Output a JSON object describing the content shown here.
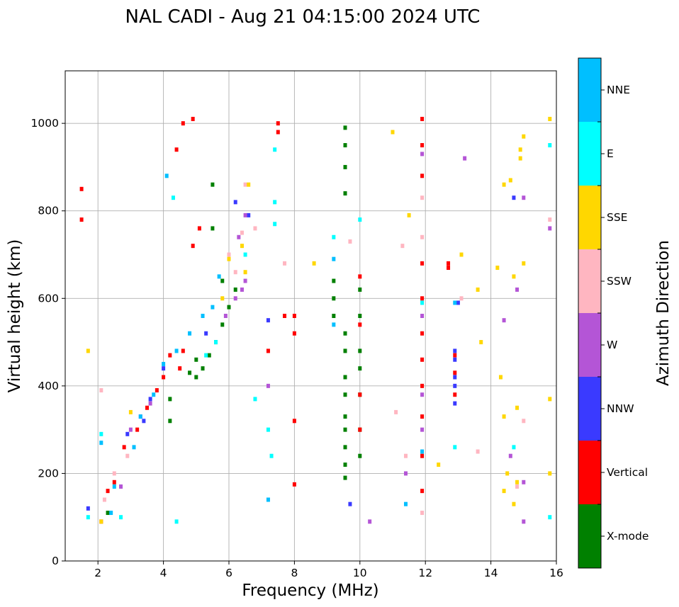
{
  "chart_data": {
    "type": "scatter",
    "title": "NAL CADI - Aug 21 04:15:00 2024 UTC",
    "xlabel": "Frequency (MHz)",
    "ylabel": "Virtual height (km)",
    "xlim": [
      1,
      16
    ],
    "ylim": [
      0,
      1120
    ],
    "xticks": [
      2,
      4,
      6,
      8,
      10,
      12,
      14,
      16
    ],
    "yticks": [
      0,
      200,
      400,
      600,
      800,
      1000
    ],
    "grid": true,
    "colorbar": {
      "label": "Azimuth Direction",
      "categories": [
        {
          "name": "X-mode",
          "color": "#008000"
        },
        {
          "name": "Vertical",
          "color": "#ff0000"
        },
        {
          "name": "NNW",
          "color": "#3a3aff"
        },
        {
          "name": "W",
          "color": "#b455d6"
        },
        {
          "name": "SSW",
          "color": "#ffb6c1"
        },
        {
          "name": "SSE",
          "color": "#ffd700"
        },
        {
          "name": "E",
          "color": "#00ffff"
        },
        {
          "name": "NNE",
          "color": "#00bfff"
        }
      ]
    },
    "series": [
      {
        "name": "X-mode",
        "points": [
          [
            5.0,
            420
          ],
          [
            5.2,
            440
          ],
          [
            5.4,
            470
          ],
          [
            5.6,
            500
          ],
          [
            5.8,
            540
          ],
          [
            6.0,
            580
          ],
          [
            6.2,
            620
          ],
          [
            5.5,
            760
          ],
          [
            5.5,
            860
          ],
          [
            5.8,
            640
          ],
          [
            4.2,
            320
          ],
          [
            4.2,
            370
          ],
          [
            9.55,
            520
          ],
          [
            9.55,
            480
          ],
          [
            9.55,
            420
          ],
          [
            9.55,
            380
          ],
          [
            9.55,
            330
          ],
          [
            9.55,
            300
          ],
          [
            9.55,
            260
          ],
          [
            9.55,
            220
          ],
          [
            9.55,
            190
          ],
          [
            9.55,
            990
          ],
          [
            9.55,
            950
          ],
          [
            9.55,
            900
          ],
          [
            9.55,
            840
          ],
          [
            9.2,
            640
          ],
          [
            9.2,
            600
          ],
          [
            9.2,
            560
          ],
          [
            10.0,
            620
          ],
          [
            10.0,
            560
          ],
          [
            10.0,
            480
          ],
          [
            10.0,
            440
          ],
          [
            10.0,
            380
          ],
          [
            10.0,
            300
          ],
          [
            10.0,
            240
          ],
          [
            2.3,
            110
          ],
          [
            5.0,
            460
          ],
          [
            4.8,
            430
          ]
        ]
      },
      {
        "name": "Vertical",
        "points": [
          [
            1.5,
            850
          ],
          [
            1.5,
            780
          ],
          [
            2.1,
            90
          ],
          [
            2.3,
            160
          ],
          [
            2.5,
            180
          ],
          [
            2.8,
            260
          ],
          [
            3.2,
            300
          ],
          [
            3.5,
            350
          ],
          [
            3.8,
            390
          ],
          [
            4.0,
            420
          ],
          [
            4.2,
            470
          ],
          [
            4.5,
            440
          ],
          [
            4.6,
            480
          ],
          [
            4.4,
            940
          ],
          [
            4.6,
            1000
          ],
          [
            4.9,
            1010
          ],
          [
            4.9,
            720
          ],
          [
            5.1,
            760
          ],
          [
            7.5,
            1000
          ],
          [
            7.5,
            980
          ],
          [
            7.7,
            560
          ],
          [
            8.0,
            560
          ],
          [
            8.0,
            520
          ],
          [
            8.0,
            320
          ],
          [
            8.0,
            175
          ],
          [
            7.2,
            480
          ],
          [
            11.9,
            680
          ],
          [
            11.9,
            600
          ],
          [
            11.9,
            520
          ],
          [
            11.9,
            460
          ],
          [
            11.9,
            400
          ],
          [
            11.9,
            330
          ],
          [
            11.9,
            240
          ],
          [
            11.9,
            160
          ],
          [
            11.9,
            880
          ],
          [
            11.9,
            950
          ],
          [
            11.9,
            1010
          ],
          [
            12.7,
            680
          ],
          [
            12.7,
            670
          ],
          [
            12.9,
            470
          ],
          [
            12.9,
            430
          ],
          [
            12.9,
            380
          ],
          [
            10.0,
            650
          ],
          [
            10.0,
            540
          ],
          [
            10.0,
            380
          ],
          [
            10.0,
            300
          ]
        ]
      },
      {
        "name": "NNW",
        "points": [
          [
            1.7,
            120
          ],
          [
            2.9,
            290
          ],
          [
            3.4,
            320
          ],
          [
            3.6,
            370
          ],
          [
            4.0,
            440
          ],
          [
            5.3,
            520
          ],
          [
            6.2,
            820
          ],
          [
            6.6,
            790
          ],
          [
            7.2,
            550
          ],
          [
            12.9,
            480
          ],
          [
            12.9,
            460
          ],
          [
            12.9,
            420
          ],
          [
            12.9,
            400
          ],
          [
            12.9,
            360
          ],
          [
            13.0,
            590
          ],
          [
            14.7,
            830
          ],
          [
            9.7,
            130
          ]
        ]
      },
      {
        "name": "W",
        "points": [
          [
            2.7,
            170
          ],
          [
            3.0,
            300
          ],
          [
            3.3,
            330
          ],
          [
            3.6,
            360
          ],
          [
            5.9,
            560
          ],
          [
            6.2,
            600
          ],
          [
            6.4,
            620
          ],
          [
            6.5,
            640
          ],
          [
            6.3,
            740
          ],
          [
            6.5,
            790
          ],
          [
            7.2,
            400
          ],
          [
            11.4,
            200
          ],
          [
            11.9,
            300
          ],
          [
            11.9,
            380
          ],
          [
            11.9,
            560
          ],
          [
            11.9,
            930
          ],
          [
            13.2,
            920
          ],
          [
            14.4,
            550
          ],
          [
            14.6,
            240
          ],
          [
            14.8,
            620
          ],
          [
            15.0,
            830
          ],
          [
            15.0,
            180
          ],
          [
            15.0,
            90
          ],
          [
            15.8,
            760
          ],
          [
            10.3,
            90
          ]
        ]
      },
      {
        "name": "SSW",
        "points": [
          [
            2.1,
            390
          ],
          [
            2.2,
            140
          ],
          [
            2.5,
            200
          ],
          [
            2.9,
            240
          ],
          [
            6.0,
            700
          ],
          [
            6.2,
            660
          ],
          [
            6.4,
            750
          ],
          [
            6.5,
            860
          ],
          [
            6.8,
            760
          ],
          [
            7.7,
            680
          ],
          [
            9.7,
            730
          ],
          [
            11.3,
            720
          ],
          [
            11.9,
            830
          ],
          [
            11.9,
            740
          ],
          [
            11.9,
            110
          ],
          [
            13.1,
            600
          ],
          [
            13.6,
            250
          ],
          [
            14.8,
            170
          ],
          [
            15.0,
            320
          ],
          [
            15.8,
            780
          ],
          [
            11.1,
            340
          ],
          [
            11.4,
            240
          ]
        ]
      },
      {
        "name": "SSE",
        "points": [
          [
            1.7,
            480
          ],
          [
            2.1,
            90
          ],
          [
            3.0,
            340
          ],
          [
            5.8,
            600
          ],
          [
            6.0,
            690
          ],
          [
            6.4,
            720
          ],
          [
            6.5,
            660
          ],
          [
            6.6,
            860
          ],
          [
            8.6,
            680
          ],
          [
            11.0,
            980
          ],
          [
            11.5,
            790
          ],
          [
            12.4,
            220
          ],
          [
            13.1,
            700
          ],
          [
            13.6,
            620
          ],
          [
            13.7,
            500
          ],
          [
            14.2,
            670
          ],
          [
            14.3,
            420
          ],
          [
            14.4,
            860
          ],
          [
            14.6,
            870
          ],
          [
            14.7,
            650
          ],
          [
            14.8,
            350
          ],
          [
            14.9,
            940
          ],
          [
            14.9,
            920
          ],
          [
            15.0,
            970
          ],
          [
            15.0,
            680
          ],
          [
            14.4,
            330
          ],
          [
            14.4,
            160
          ],
          [
            14.7,
            130
          ],
          [
            15.8,
            1010
          ],
          [
            15.8,
            370
          ],
          [
            15.8,
            200
          ],
          [
            14.5,
            200
          ],
          [
            14.8,
            180
          ]
        ]
      },
      {
        "name": "E",
        "points": [
          [
            1.7,
            100
          ],
          [
            2.1,
            290
          ],
          [
            2.7,
            100
          ],
          [
            4.4,
            90
          ],
          [
            4.3,
            830
          ],
          [
            5.3,
            470
          ],
          [
            5.6,
            500
          ],
          [
            6.5,
            700
          ],
          [
            6.8,
            370
          ],
          [
            7.2,
            300
          ],
          [
            7.3,
            240
          ],
          [
            7.4,
            820
          ],
          [
            7.4,
            770
          ],
          [
            7.4,
            940
          ],
          [
            9.2,
            740
          ],
          [
            11.9,
            590
          ],
          [
            12.9,
            260
          ],
          [
            14.7,
            260
          ],
          [
            15.8,
            950
          ],
          [
            15.8,
            100
          ],
          [
            10.0,
            780
          ]
        ]
      },
      {
        "name": "NNE",
        "points": [
          [
            2.1,
            270
          ],
          [
            2.4,
            110
          ],
          [
            2.5,
            170
          ],
          [
            3.1,
            260
          ],
          [
            3.3,
            330
          ],
          [
            3.7,
            380
          ],
          [
            4.0,
            450
          ],
          [
            4.4,
            480
          ],
          [
            4.8,
            520
          ],
          [
            5.2,
            560
          ],
          [
            5.5,
            580
          ],
          [
            5.7,
            650
          ],
          [
            4.1,
            880
          ],
          [
            7.2,
            140
          ],
          [
            9.2,
            690
          ],
          [
            9.2,
            540
          ],
          [
            11.4,
            130
          ],
          [
            11.9,
            250
          ],
          [
            12.9,
            590
          ]
        ]
      }
    ]
  }
}
